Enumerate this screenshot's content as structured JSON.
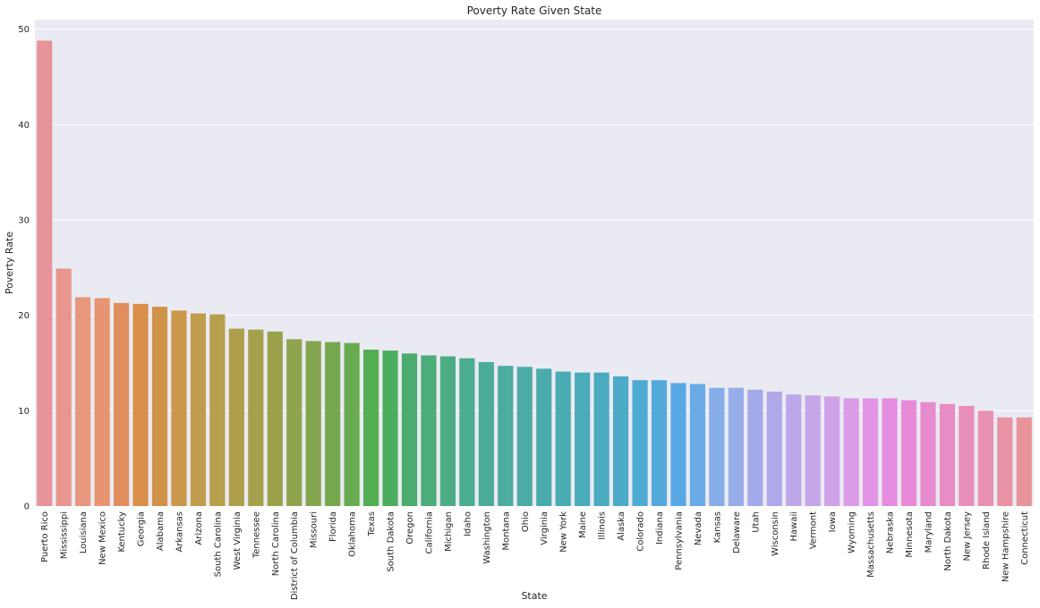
{
  "chart_data": {
    "type": "bar",
    "title": "Poverty Rate Given State",
    "xlabel": "State",
    "ylabel": "Poverty Rate",
    "ylim": [
      0,
      51
    ],
    "yticks": [
      0,
      10,
      20,
      30,
      40,
      50
    ],
    "grid": true,
    "categories": [
      "Puerto Rico",
      "Mississippi",
      "Louisiana",
      "New Mexico",
      "Kentucky",
      "Georgia",
      "Alabama",
      "Arkansas",
      "Arizona",
      "South Carolina",
      "West Virginia",
      "Tennessee",
      "North Carolina",
      "District of Columbia",
      "Missouri",
      "Florida",
      "Oklahoma",
      "Texas",
      "South Dakota",
      "Oregon",
      "California",
      "Michigan",
      "Idaho",
      "Washington",
      "Montana",
      "Ohio",
      "Virginia",
      "New York",
      "Maine",
      "Illinois",
      "Alaska",
      "Colorado",
      "Indiana",
      "Pennsylvania",
      "Nevada",
      "Kansas",
      "Delaware",
      "Utah",
      "Wisconsin",
      "Hawaii",
      "Vermont",
      "Iowa",
      "Wyoming",
      "Massachusetts",
      "Nebraska",
      "Minnesota",
      "Maryland",
      "North Dakota",
      "New Jersey",
      "Rhode Island",
      "New Hampshire",
      "Connecticut"
    ],
    "values": [
      48.8,
      24.9,
      21.9,
      21.8,
      21.3,
      21.2,
      20.9,
      20.5,
      20.2,
      20.1,
      18.6,
      18.5,
      18.3,
      17.5,
      17.3,
      17.2,
      17.1,
      16.4,
      16.3,
      16.0,
      15.8,
      15.7,
      15.5,
      15.1,
      14.7,
      14.6,
      14.4,
      14.1,
      14.0,
      14.0,
      13.6,
      13.2,
      13.2,
      12.9,
      12.8,
      12.4,
      12.4,
      12.2,
      12.0,
      11.7,
      11.6,
      11.5,
      11.3,
      11.3,
      11.3,
      11.1,
      10.9,
      10.7,
      10.5,
      10.0,
      9.3,
      9.3
    ],
    "colors": [
      "#e8939a",
      "#e8968e",
      "#e8977f",
      "#e79470",
      "#e08e5d",
      "#d98f4a",
      "#d09249",
      "#c9984b",
      "#c09c4d",
      "#b89f4e",
      "#ae9f4d",
      "#a4a04b",
      "#9aa24c",
      "#8fa44e",
      "#84a54f",
      "#77a84f",
      "#68ab50",
      "#54ae52",
      "#4cae5c",
      "#4bac6d",
      "#4cad7a",
      "#4cad85",
      "#4bad8f",
      "#4bac98",
      "#4bac9f",
      "#4baca6",
      "#4aabac",
      "#4aabb3",
      "#4aabb9",
      "#4aabbf",
      "#4cabc7",
      "#4eaad0",
      "#52a9da",
      "#59a8e5",
      "#6aabe6",
      "#87aee8",
      "#97ade9",
      "#a4aae9",
      "#afa8e9",
      "#bca7e9",
      "#c6a6e9",
      "#d0a2e8",
      "#dc9ce8",
      "#e295e6",
      "#e58ce1",
      "#e78bd8",
      "#e88bce",
      "#e88cc4",
      "#e88eba",
      "#e890b0",
      "#e893a6",
      "#e8939a"
    ]
  }
}
